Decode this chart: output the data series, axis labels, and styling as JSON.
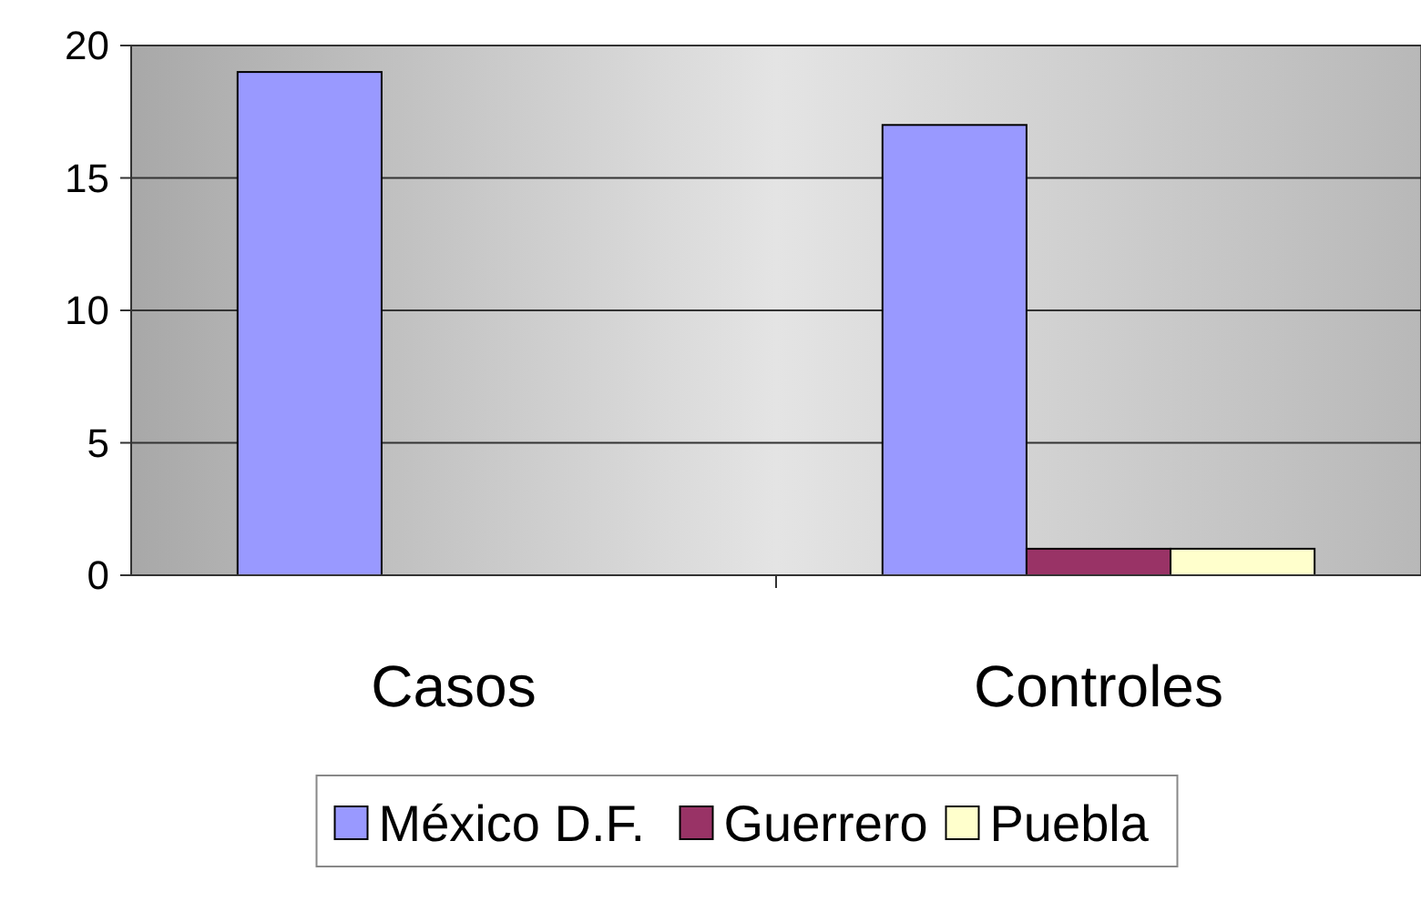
{
  "chart_data": {
    "type": "bar",
    "categories": [
      "Casos",
      "Controles"
    ],
    "series": [
      {
        "name": "México D.F.",
        "color": "#9999ff",
        "values": [
          19,
          17
        ]
      },
      {
        "name": "Guerrero",
        "color": "#993366",
        "values": [
          0,
          1
        ]
      },
      {
        "name": "Puebla",
        "color": "#ffffcc",
        "values": [
          0,
          1
        ]
      }
    ],
    "ylim": [
      0,
      20
    ],
    "yticks": [
      0,
      5,
      10,
      15,
      20
    ],
    "grid": "y",
    "legend": "bottom"
  }
}
